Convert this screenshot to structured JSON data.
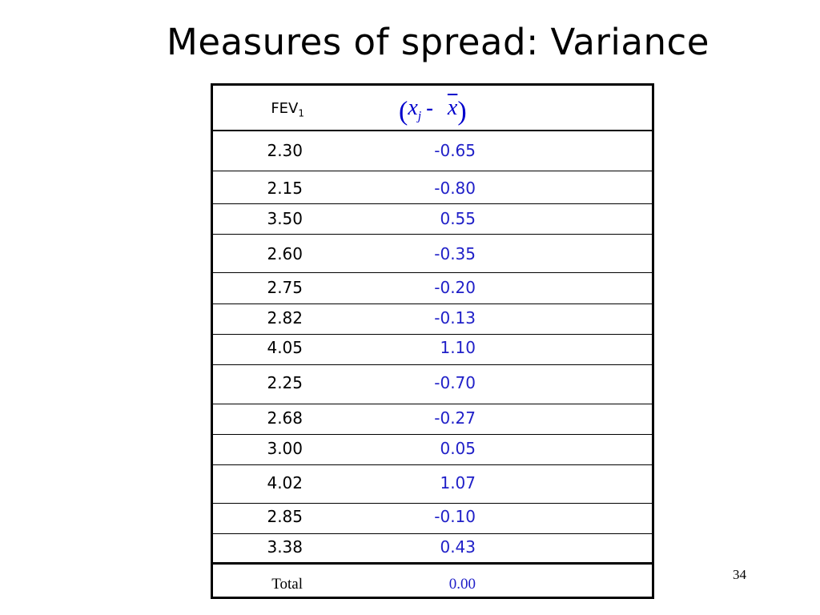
{
  "slide": {
    "title": "Measures of spread: Variance",
    "page_number": "34"
  },
  "table": {
    "header": {
      "fev_label": "FEV",
      "fev_subscript": "1",
      "formula": {
        "open_paren": "(",
        "x": "x",
        "j": "j",
        "minus": "-",
        "xbar": "x",
        "close_paren": ")"
      }
    },
    "rows": [
      {
        "fev": "2.30",
        "deviation": "-0.65"
      },
      {
        "fev": "2.15",
        "deviation": "-0.80"
      },
      {
        "fev": "3.50",
        "deviation": "0.55"
      },
      {
        "fev": "2.60",
        "deviation": "-0.35"
      },
      {
        "fev": "2.75",
        "deviation": "-0.20"
      },
      {
        "fev": "2.82",
        "deviation": "-0.13"
      },
      {
        "fev": "4.05",
        "deviation": "1.10"
      },
      {
        "fev": "2.25",
        "deviation": "-0.70"
      },
      {
        "fev": "2.68",
        "deviation": "-0.27"
      },
      {
        "fev": "3.00",
        "deviation": "0.05"
      },
      {
        "fev": "4.02",
        "deviation": "1.07"
      },
      {
        "fev": "2.85",
        "deviation": "-0.10"
      },
      {
        "fev": "3.38",
        "deviation": "0.43"
      }
    ],
    "total": {
      "label": "Total",
      "value": "0.00"
    }
  },
  "colors": {
    "deviation_text": "#2020c8",
    "formula_text": "#0000cc",
    "border": "#000000"
  }
}
